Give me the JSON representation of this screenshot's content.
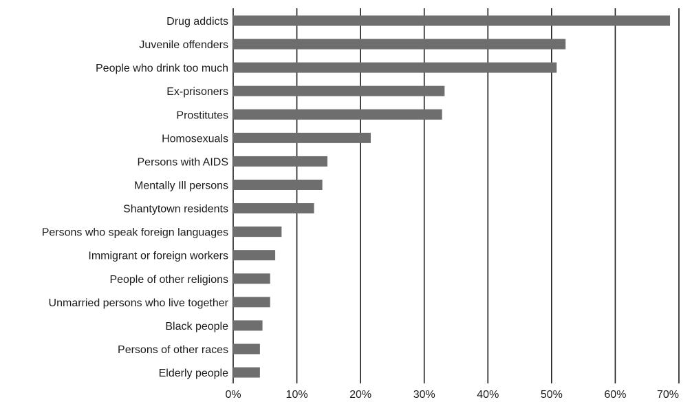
{
  "chart_data": {
    "type": "bar",
    "orientation": "horizontal",
    "categories": [
      "Drug addicts",
      "Juvenile offenders",
      "People who drink too much",
      "Ex-prisoners",
      "Prostitutes",
      "Homosexuals",
      "Persons with AIDS",
      "Mentally Ill persons",
      "Shantytown residents",
      "Persons who speak foreign languages",
      "Immigrant or foreign workers",
      "People of other religions",
      "Unmarried persons who live together",
      "Black people",
      "Persons of other races",
      "Elderly people"
    ],
    "values": [
      68.6,
      52.2,
      50.8,
      33.2,
      32.8,
      21.6,
      14.8,
      14.0,
      12.7,
      7.6,
      6.6,
      5.8,
      5.8,
      4.6,
      4.2,
      4.2
    ],
    "xlim": [
      0,
      70
    ],
    "ticks": [
      0,
      10,
      20,
      30,
      40,
      50,
      60,
      70
    ],
    "tick_labels": [
      "0%",
      "10%",
      "20%",
      "30%",
      "40%",
      "50%",
      "60%",
      "70%"
    ],
    "title": "",
    "xlabel": "",
    "ylabel": "",
    "grid": "vertical",
    "legend": "none",
    "bar_color": "#6e6e6e"
  }
}
